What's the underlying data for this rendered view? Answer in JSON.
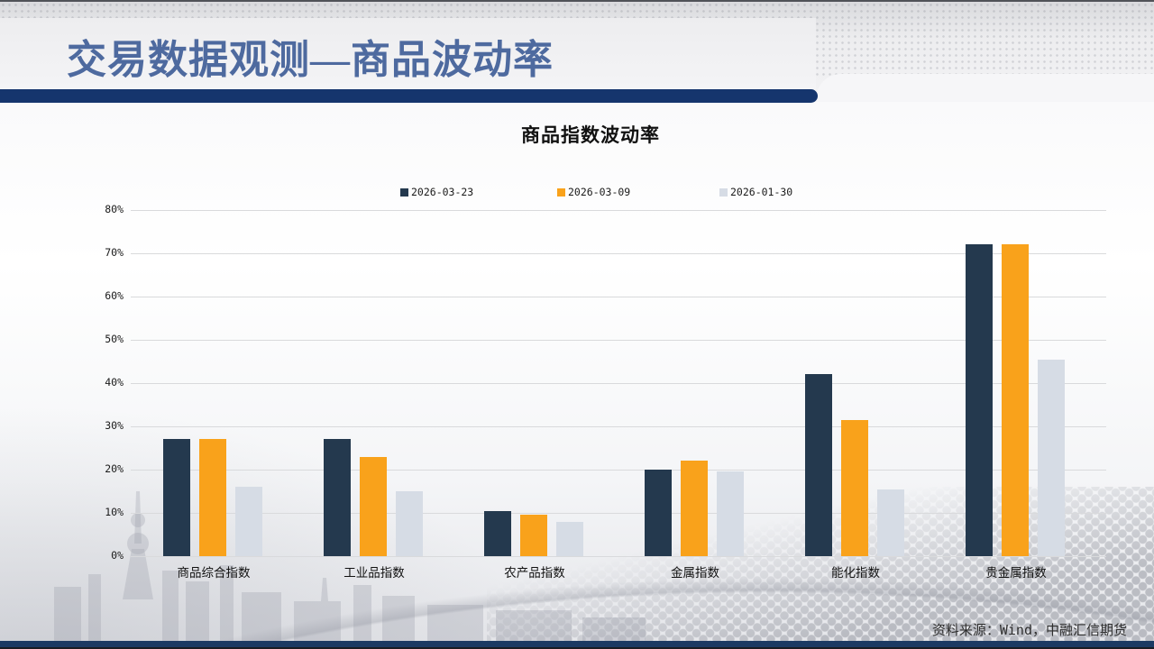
{
  "slide": {
    "title": "交易数据观测—商品波动率",
    "source_text": "资料来源：Wind，中融汇信期货"
  },
  "chart_data": {
    "type": "bar",
    "title": "商品指数波动率",
    "categories": [
      "商品综合指数",
      "工业品指数",
      "农产品指数",
      "金属指数",
      "能化指数",
      "贵金属指数"
    ],
    "series": [
      {
        "name": "2026-03-23",
        "color": "#24394e",
        "values": [
          27,
          27,
          10.5,
          20,
          42,
          72
        ]
      },
      {
        "name": "2026-03-09",
        "color": "#f9a21b",
        "values": [
          27,
          23,
          9.5,
          22,
          31.5,
          72
        ]
      },
      {
        "name": "2026-01-30",
        "color": "#d6dce5",
        "values": [
          16,
          15,
          8,
          19.5,
          15.5,
          45.5
        ]
      }
    ],
    "xlabel": "",
    "ylabel": "",
    "ylim": [
      0,
      80
    ],
    "ytick_step": 10,
    "ytick_suffix": "%",
    "grid": true,
    "legend_position": "top-center"
  },
  "colors": {
    "title_blue": "#4e6a9f",
    "divider_navy": "#15356d",
    "bottom_strip_navy": "#1c3a63",
    "grid_line": "#d9dadc"
  }
}
